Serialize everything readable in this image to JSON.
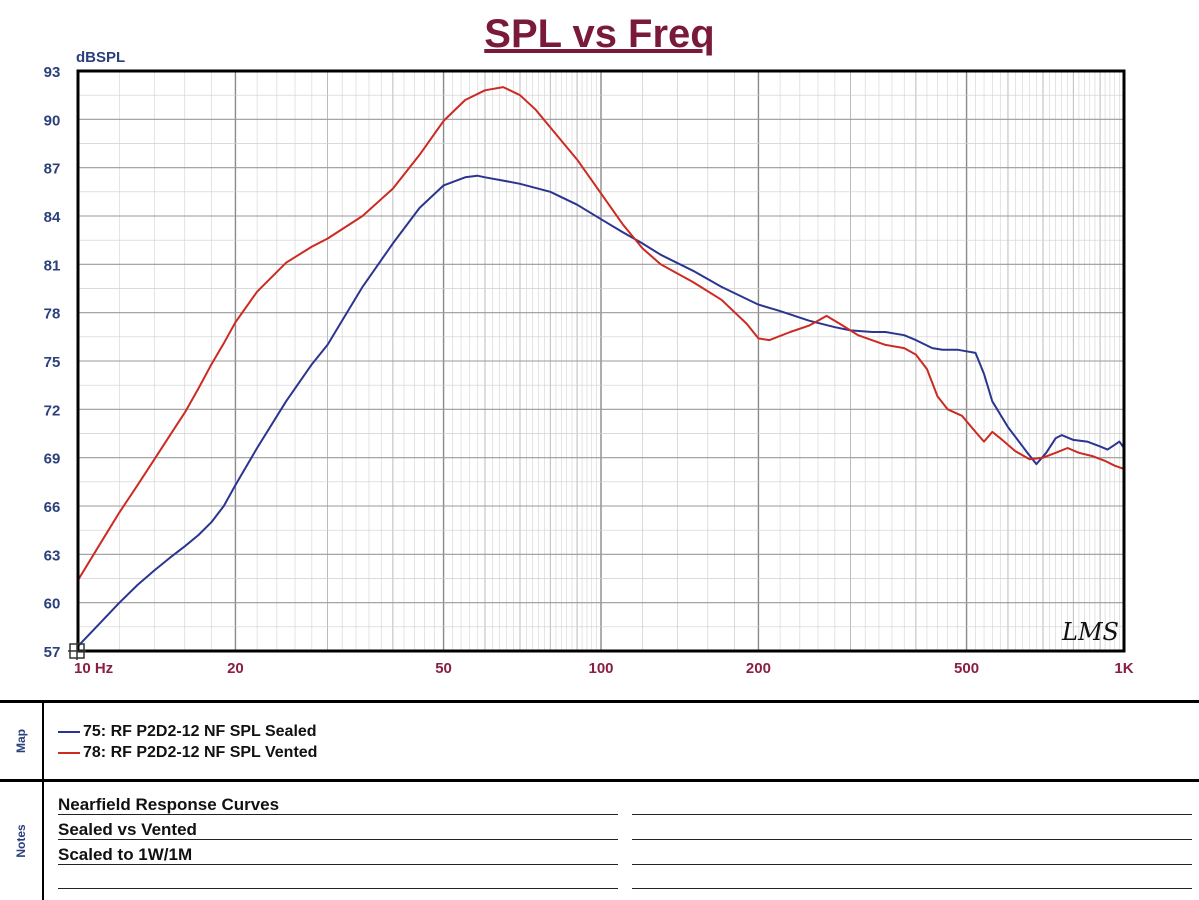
{
  "chart_data": {
    "type": "line",
    "title": "SPL vs Freq",
    "ylabel": "dBSPL",
    "xlabel": "",
    "xscale": "log",
    "xlim": [
      10,
      1000
    ],
    "ylim": [
      57,
      93
    ],
    "yticks": [
      93,
      90,
      87,
      84,
      81,
      78,
      75,
      72,
      69,
      66,
      63,
      60,
      57
    ],
    "xtick_labels": [
      {
        "x": 10,
        "label": "10 Hz"
      },
      {
        "x": 20,
        "label": "20"
      },
      {
        "x": 50,
        "label": "50"
      },
      {
        "x": 100,
        "label": "100"
      },
      {
        "x": 200,
        "label": "200"
      },
      {
        "x": 500,
        "label": "500"
      },
      {
        "x": 1000,
        "label": "1K"
      }
    ],
    "grid": true,
    "watermark": "LMS",
    "series": [
      {
        "name": "75: RF P2D2-12 NF SPL Sealed",
        "color": "#2b3590",
        "points": [
          [
            10,
            57.3
          ],
          [
            11,
            58.7
          ],
          [
            12,
            60.0
          ],
          [
            13,
            61.1
          ],
          [
            14,
            62.0
          ],
          [
            15,
            62.8
          ],
          [
            16,
            63.5
          ],
          [
            17,
            64.2
          ],
          [
            18,
            65.0
          ],
          [
            19,
            66.0
          ],
          [
            20,
            67.3
          ],
          [
            22,
            69.6
          ],
          [
            25,
            72.5
          ],
          [
            28,
            74.8
          ],
          [
            30,
            76.0
          ],
          [
            35,
            79.6
          ],
          [
            40,
            82.3
          ],
          [
            45,
            84.5
          ],
          [
            50,
            85.9
          ],
          [
            55,
            86.4
          ],
          [
            58,
            86.5
          ],
          [
            60,
            86.4
          ],
          [
            65,
            86.2
          ],
          [
            70,
            86.0
          ],
          [
            80,
            85.5
          ],
          [
            90,
            84.7
          ],
          [
            100,
            83.8
          ],
          [
            110,
            83.0
          ],
          [
            120,
            82.3
          ],
          [
            130,
            81.6
          ],
          [
            150,
            80.6
          ],
          [
            170,
            79.6
          ],
          [
            200,
            78.5
          ],
          [
            220,
            78.1
          ],
          [
            250,
            77.5
          ],
          [
            280,
            77.1
          ],
          [
            300,
            76.9
          ],
          [
            330,
            76.8
          ],
          [
            350,
            76.8
          ],
          [
            380,
            76.6
          ],
          [
            400,
            76.3
          ],
          [
            430,
            75.8
          ],
          [
            450,
            75.7
          ],
          [
            480,
            75.7
          ],
          [
            500,
            75.6
          ],
          [
            520,
            75.5
          ],
          [
            540,
            74.2
          ],
          [
            560,
            72.5
          ],
          [
            600,
            70.9
          ],
          [
            650,
            69.4
          ],
          [
            680,
            68.6
          ],
          [
            710,
            69.3
          ],
          [
            740,
            70.2
          ],
          [
            760,
            70.4
          ],
          [
            800,
            70.1
          ],
          [
            850,
            70.0
          ],
          [
            900,
            69.7
          ],
          [
            930,
            69.5
          ],
          [
            960,
            69.8
          ],
          [
            980,
            70.0
          ],
          [
            1000,
            69.6
          ]
        ]
      },
      {
        "name": "78: RF P2D2-12 NF SPL Vented",
        "color": "#cc2a22",
        "points": [
          [
            10,
            61.4
          ],
          [
            11,
            63.6
          ],
          [
            12,
            65.6
          ],
          [
            13,
            67.3
          ],
          [
            14,
            68.9
          ],
          [
            15,
            70.4
          ],
          [
            16,
            71.8
          ],
          [
            17,
            73.3
          ],
          [
            18,
            74.8
          ],
          [
            19,
            76.1
          ],
          [
            20,
            77.4
          ],
          [
            22,
            79.3
          ],
          [
            25,
            81.1
          ],
          [
            28,
            82.1
          ],
          [
            30,
            82.6
          ],
          [
            35,
            84.0
          ],
          [
            40,
            85.7
          ],
          [
            45,
            87.8
          ],
          [
            50,
            89.9
          ],
          [
            55,
            91.2
          ],
          [
            60,
            91.8
          ],
          [
            65,
            92.0
          ],
          [
            70,
            91.5
          ],
          [
            75,
            90.6
          ],
          [
            80,
            89.5
          ],
          [
            90,
            87.5
          ],
          [
            100,
            85.4
          ],
          [
            110,
            83.5
          ],
          [
            120,
            82.0
          ],
          [
            130,
            81.0
          ],
          [
            150,
            79.9
          ],
          [
            170,
            78.8
          ],
          [
            190,
            77.3
          ],
          [
            200,
            76.4
          ],
          [
            210,
            76.3
          ],
          [
            230,
            76.8
          ],
          [
            250,
            77.2
          ],
          [
            270,
            77.8
          ],
          [
            290,
            77.2
          ],
          [
            310,
            76.6
          ],
          [
            350,
            76.0
          ],
          [
            380,
            75.8
          ],
          [
            400,
            75.4
          ],
          [
            420,
            74.5
          ],
          [
            440,
            72.8
          ],
          [
            460,
            72.0
          ],
          [
            490,
            71.6
          ],
          [
            520,
            70.6
          ],
          [
            540,
            70.0
          ],
          [
            560,
            70.6
          ],
          [
            580,
            70.2
          ],
          [
            620,
            69.4
          ],
          [
            660,
            68.9
          ],
          [
            700,
            69.0
          ],
          [
            740,
            69.3
          ],
          [
            780,
            69.6
          ],
          [
            820,
            69.3
          ],
          [
            870,
            69.1
          ],
          [
            920,
            68.8
          ],
          [
            960,
            68.5
          ],
          [
            1000,
            68.3
          ]
        ]
      }
    ]
  },
  "map": {
    "label": "Map",
    "entries": [
      {
        "label": "75: RF P2D2-12 NF SPL Sealed",
        "color": "#2b3590"
      },
      {
        "label": "78: RF P2D2-12 NF SPL Vented",
        "color": "#cc2a22"
      }
    ]
  },
  "notes": {
    "label": "Notes",
    "lines": [
      "Nearfield Response Curves",
      "Sealed vs Vented",
      "Scaled to 1W/1M"
    ]
  }
}
